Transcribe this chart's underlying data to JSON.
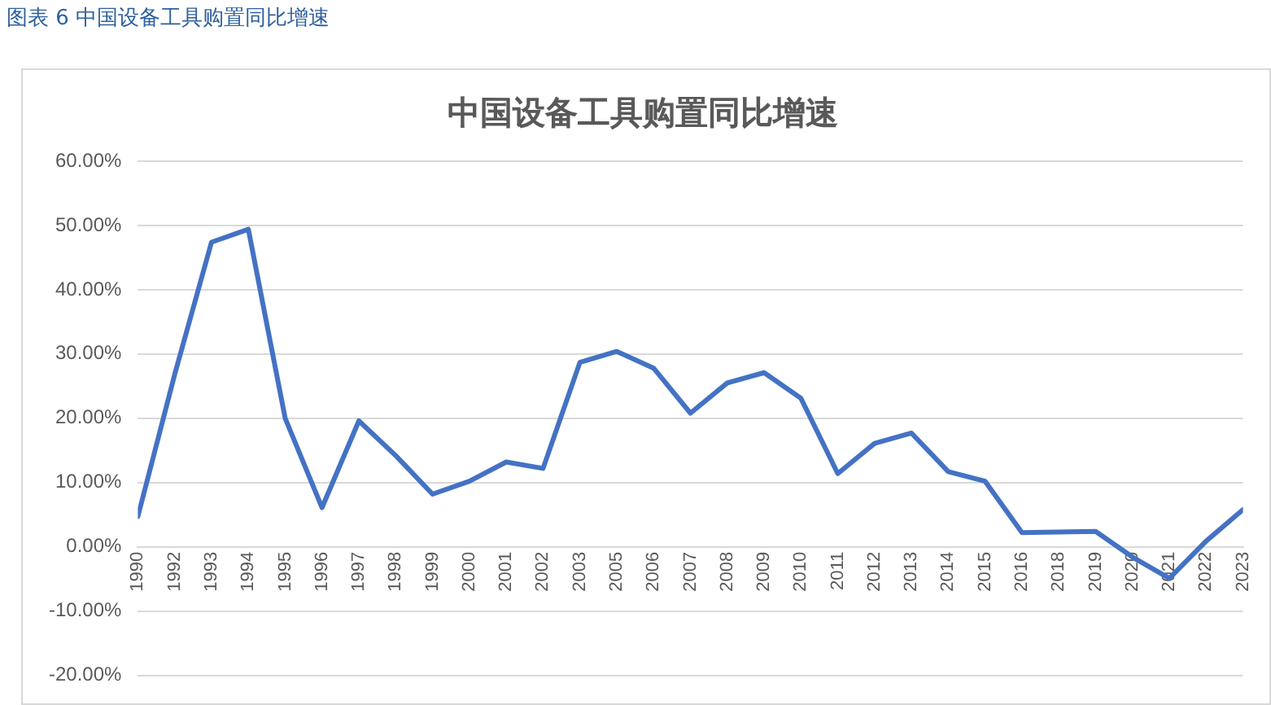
{
  "chart_data": {
    "type": "line",
    "title": "中国设备工具购置同比增速",
    "annotations": [
      "图表 6  中国设备工具购置同比增速"
    ],
    "categories": [
      "1990",
      "1992",
      "1993",
      "1994",
      "1995",
      "1996",
      "1997",
      "1998",
      "1999",
      "2000",
      "2001",
      "2002",
      "2003",
      "2005",
      "2006",
      "2007",
      "2008",
      "2009",
      "2010",
      "2011",
      "2012",
      "2013",
      "2014",
      "2015",
      "2016",
      "2018",
      "2019",
      "2020",
      "2021",
      "2022",
      "2023"
    ],
    "series": [
      {
        "color": "#4472c4",
        "values": [
          4.7,
          26.8,
          47.4,
          49.4,
          20.0,
          6.1,
          19.6,
          14.2,
          8.2,
          10.2,
          13.2,
          12.2,
          28.7,
          30.4,
          27.8,
          20.8,
          25.5,
          27.1,
          23.1,
          11.4,
          16.1,
          17.7,
          11.7,
          10.2,
          2.2,
          2.3,
          2.4,
          -1.6,
          -4.9,
          0.9,
          5.8
        ]
      }
    ],
    "ylim": [
      -20,
      60
    ],
    "yticks": [
      {
        "value": -20,
        "label": "-20.00%"
      },
      {
        "value": -10,
        "label": "-10.00%"
      },
      {
        "value": 0,
        "label": "0.00%"
      },
      {
        "value": 10,
        "label": "10.00%"
      },
      {
        "value": 20,
        "label": "20.00%"
      },
      {
        "value": 30,
        "label": "30.00%"
      },
      {
        "value": 40,
        "label": "40.00%"
      },
      {
        "value": 50,
        "label": "50.00%"
      },
      {
        "value": 60,
        "label": "60.00%"
      }
    ],
    "grid": "y",
    "legend": false,
    "marker": "none",
    "line_style": "solid"
  }
}
